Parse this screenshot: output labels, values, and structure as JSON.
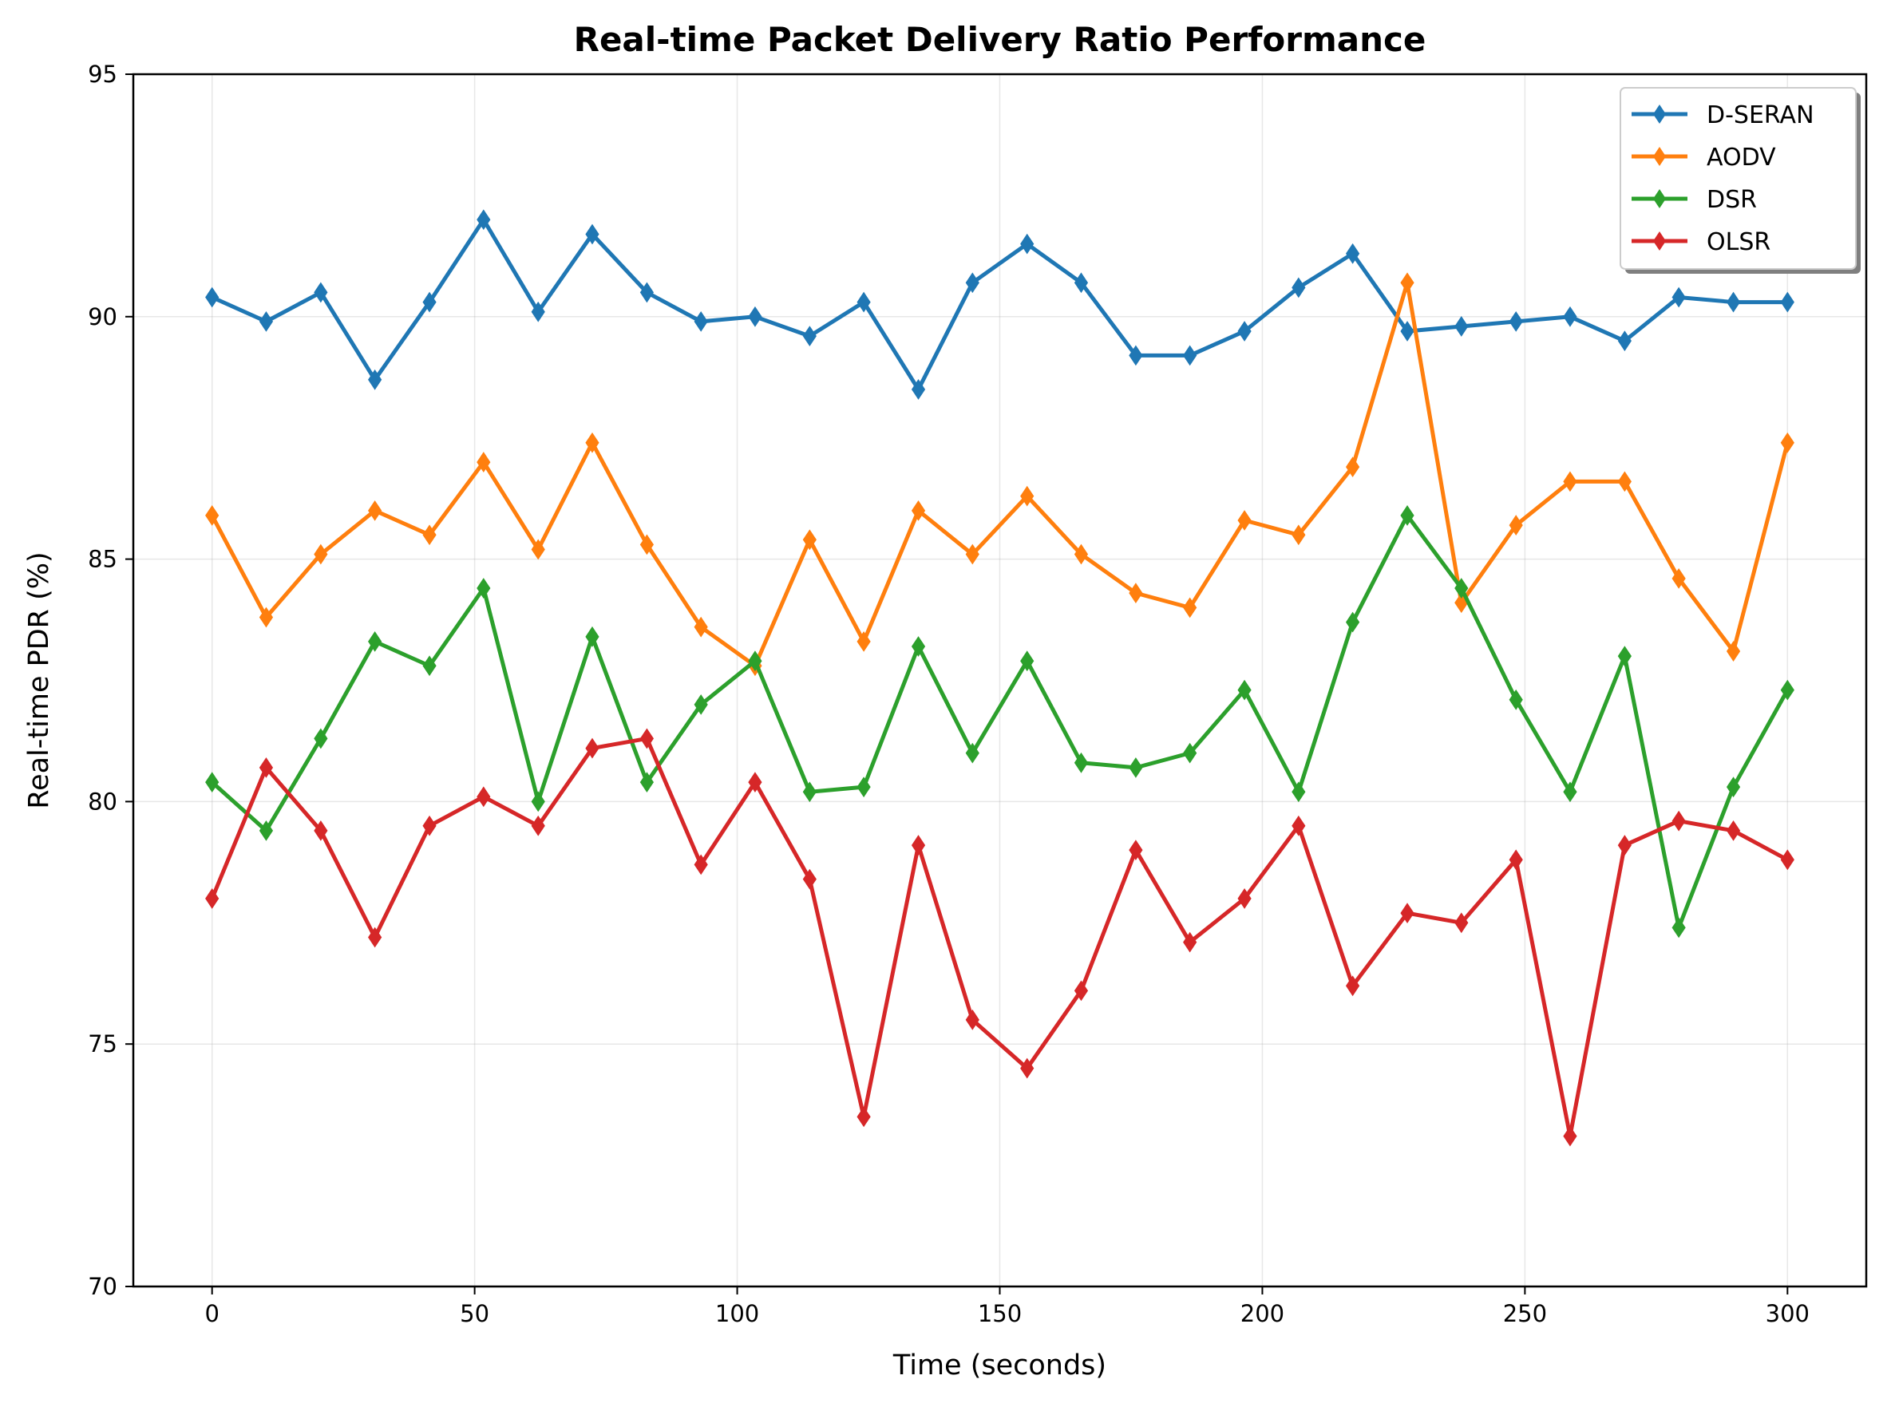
{
  "chart_data": {
    "type": "line",
    "title": "Real-time Packet Delivery Ratio Performance",
    "xlabel": "Time (seconds)",
    "ylabel": "Real-time PDR (%)",
    "xlim": [
      -15,
      315
    ],
    "ylim": [
      70,
      95
    ],
    "xticks": [
      0,
      50,
      100,
      150,
      200,
      250,
      300
    ],
    "yticks": [
      70,
      75,
      80,
      85,
      90,
      95
    ],
    "grid": true,
    "legend_position": "top-right",
    "x": [
      0,
      10.3,
      20.7,
      31.0,
      41.4,
      51.7,
      62.1,
      72.4,
      82.8,
      93.1,
      103.4,
      113.8,
      124.1,
      134.5,
      144.8,
      155.2,
      165.5,
      175.9,
      186.2,
      196.6,
      206.9,
      217.2,
      227.6,
      237.9,
      248.3,
      258.6,
      269.0,
      279.3,
      289.7,
      300.0
    ],
    "series": [
      {
        "name": "D-SERAN",
        "color": "#1f77b4",
        "marker": "diamond",
        "values": [
          90.4,
          89.9,
          90.5,
          88.7,
          90.3,
          92.0,
          90.1,
          91.7,
          90.5,
          89.9,
          90.0,
          89.6,
          90.3,
          88.5,
          90.7,
          91.5,
          90.7,
          89.2,
          89.2,
          89.7,
          90.6,
          91.3,
          89.7,
          89.8,
          89.9,
          90.0,
          89.5,
          90.4,
          90.3,
          90.3
        ]
      },
      {
        "name": "AODV",
        "color": "#ff7f0e",
        "marker": "diamond",
        "values": [
          85.9,
          83.8,
          85.1,
          86.0,
          85.5,
          87.0,
          85.2,
          87.4,
          85.3,
          83.6,
          82.8,
          85.4,
          83.3,
          86.0,
          85.1,
          86.3,
          85.1,
          84.3,
          84.0,
          85.8,
          85.5,
          86.9,
          90.7,
          84.1,
          85.7,
          86.6,
          86.6,
          84.6,
          83.1,
          87.4
        ]
      },
      {
        "name": "DSR",
        "color": "#2ca02c",
        "marker": "diamond",
        "values": [
          80.4,
          79.4,
          81.3,
          83.3,
          82.8,
          84.4,
          80.0,
          83.4,
          80.4,
          82.0,
          82.9,
          80.2,
          80.3,
          83.2,
          81.0,
          82.9,
          80.8,
          80.7,
          81.0,
          82.3,
          80.2,
          83.7,
          85.9,
          84.4,
          82.1,
          80.2,
          83.0,
          77.4,
          80.3,
          82.3
        ]
      },
      {
        "name": "OLSR",
        "color": "#d62728",
        "marker": "diamond",
        "values": [
          78.0,
          80.7,
          79.4,
          77.2,
          79.5,
          80.1,
          79.5,
          81.1,
          81.3,
          78.7,
          80.4,
          78.4,
          73.5,
          79.1,
          75.5,
          74.5,
          76.1,
          79.0,
          77.1,
          78.0,
          79.5,
          76.2,
          77.7,
          77.5,
          78.8,
          73.1,
          79.1,
          79.6,
          79.4,
          78.8
        ]
      }
    ]
  }
}
